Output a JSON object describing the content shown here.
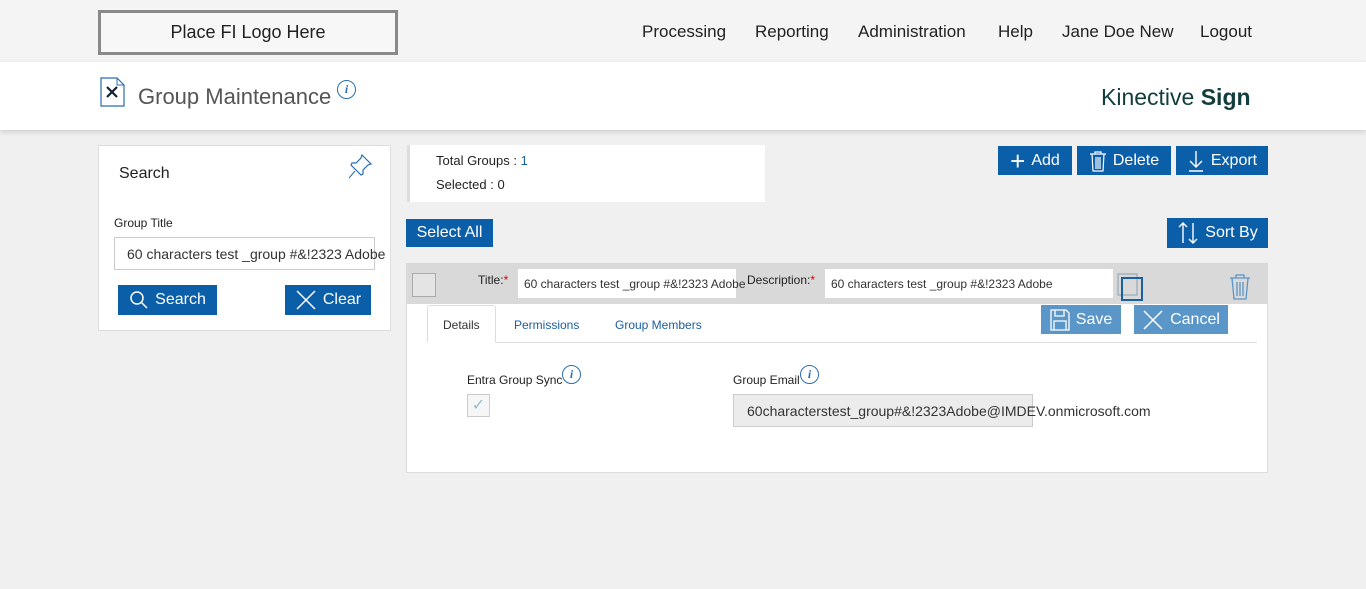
{
  "topbar": {
    "logo": "Place FI Logo Here",
    "nav": [
      "Processing",
      "Reporting",
      "Administration",
      "Help",
      "Jane Doe New",
      "Logout"
    ]
  },
  "header": {
    "title": "Group Maintenance",
    "brand_light": "Kinective",
    "brand_bold": "Sign"
  },
  "search": {
    "title": "Search",
    "field_label": "Group Title",
    "field_value": "60 characters test _group #&!2323 Adobe",
    "search_label": "Search",
    "clear_label": "Clear"
  },
  "stats": {
    "total_label": "Total Groups :",
    "total_value": "1",
    "selected_label": "Selected :",
    "selected_value": "0"
  },
  "toolbar": {
    "add": "Add",
    "delete": "Delete",
    "export": "Export",
    "select_all": "Select All",
    "sort_by": "Sort By"
  },
  "group": {
    "title_label": "Title:",
    "title_value": "60 characters test _group #&!2323 Adobe",
    "description_label": "Description:",
    "description_value": "60 characters test _group #&!2323 Adobe",
    "required_mark": "*",
    "tabs": [
      "Details",
      "Permissions",
      "Group Members"
    ],
    "save": "Save",
    "cancel": "Cancel",
    "sync_label": "Entra Group Sync",
    "sync_checked": true,
    "email_label": "Group Email",
    "email_value": "60characterstest_group#&!2323Adobe@IMDEV.onmicrosoft.com"
  },
  "colors": {
    "primary": "#0b5ea8",
    "primary_disabled": "#5b96c8",
    "background": "#f0f0f0"
  }
}
